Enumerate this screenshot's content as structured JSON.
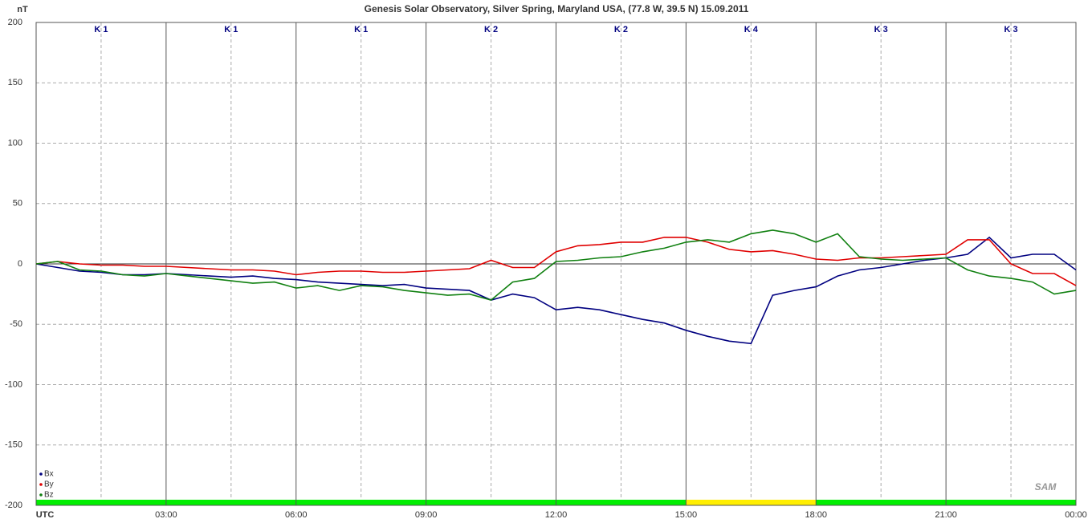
{
  "chart_data": {
    "type": "line",
    "title": "Genesis Solar Observatory, Silver Spring, Maryland USA, (77.8 W, 39.5 N)  15.09.2011",
    "y_label": "nT",
    "logo": "SAM",
    "x": [
      0,
      0.5,
      1,
      1.5,
      2,
      2.5,
      3,
      3.5,
      4,
      4.5,
      5,
      5.5,
      6,
      6.5,
      7,
      7.5,
      8,
      8.5,
      9,
      9.5,
      10,
      10.5,
      11,
      11.5,
      12,
      12.5,
      13,
      13.5,
      14,
      14.5,
      15,
      15.5,
      16,
      16.5,
      17,
      17.5,
      18,
      18.5,
      19,
      19.5,
      20,
      20.5,
      21,
      21.5,
      22,
      22.5,
      23,
      23.5,
      24
    ],
    "series": [
      {
        "name": "Bx",
        "color": "#000080",
        "values": [
          0,
          -3,
          -6,
          -7,
          -9,
          -9,
          -8,
          -9,
          -10,
          -11,
          -10,
          -12,
          -13,
          -15,
          -16,
          -17,
          -18,
          -17,
          -20,
          -21,
          -22,
          -30,
          -25,
          -28,
          -38,
          -36,
          -38,
          -42,
          -46,
          -49,
          -55,
          -60,
          -64,
          -66,
          -26,
          -22,
          -19,
          -10,
          -5,
          -3,
          0,
          3,
          5,
          8,
          22,
          5,
          8,
          8,
          -5
        ]
      },
      {
        "name": "By",
        "color": "#e00000",
        "values": [
          0,
          2,
          0,
          -1,
          -1,
          -2,
          -2,
          -3,
          -4,
          -5,
          -5,
          -6,
          -9,
          -7,
          -6,
          -6,
          -7,
          -7,
          -6,
          -5,
          -4,
          3,
          -3,
          -3,
          10,
          15,
          16,
          18,
          18,
          22,
          22,
          18,
          12,
          10,
          11,
          8,
          4,
          3,
          5,
          5,
          6,
          7,
          8,
          20,
          20,
          0,
          -8,
          -8,
          -18
        ]
      },
      {
        "name": "Bz",
        "color": "#108010",
        "values": [
          0,
          2,
          -5,
          -6,
          -9,
          -10,
          -8,
          -10,
          -12,
          -14,
          -16,
          -15,
          -20,
          -18,
          -22,
          -18,
          -19,
          -22,
          -24,
          -26,
          -25,
          -30,
          -15,
          -12,
          2,
          3,
          5,
          6,
          10,
          13,
          18,
          20,
          18,
          25,
          28,
          25,
          18,
          25,
          6,
          4,
          3,
          4,
          5,
          -5,
          -10,
          -12,
          -15,
          -25,
          -22
        ]
      }
    ],
    "xlim": [
      0,
      24
    ],
    "xticks": [
      {
        "value": 0,
        "label": "UTC"
      },
      {
        "value": 3,
        "label": "03:00"
      },
      {
        "value": 6,
        "label": "06:00"
      },
      {
        "value": 9,
        "label": "09:00"
      },
      {
        "value": 12,
        "label": "12:00"
      },
      {
        "value": 15,
        "label": "15:00"
      },
      {
        "value": 18,
        "label": "18:00"
      },
      {
        "value": 21,
        "label": "21:00"
      },
      {
        "value": 24,
        "label": "00:00"
      }
    ],
    "x_minor": [
      1.5,
      4.5,
      7.5,
      10.5,
      13.5,
      16.5,
      19.5,
      22.5
    ],
    "ylim": [
      -200,
      200
    ],
    "yticks": [
      -200,
      -150,
      -100,
      -50,
      0,
      50,
      100,
      150,
      200
    ],
    "grid": true,
    "legend": "lower-left",
    "k_labels": [
      "K 1",
      "K 1",
      "K 1",
      "K 2",
      "K 2",
      "K 4",
      "K 3",
      "K 3"
    ],
    "k_colors": [
      "#00ee00",
      "#00ee00",
      "#00ee00",
      "#00ee00",
      "#00ee00",
      "#ffee00",
      "#00ee00",
      "#00ee00"
    ]
  }
}
